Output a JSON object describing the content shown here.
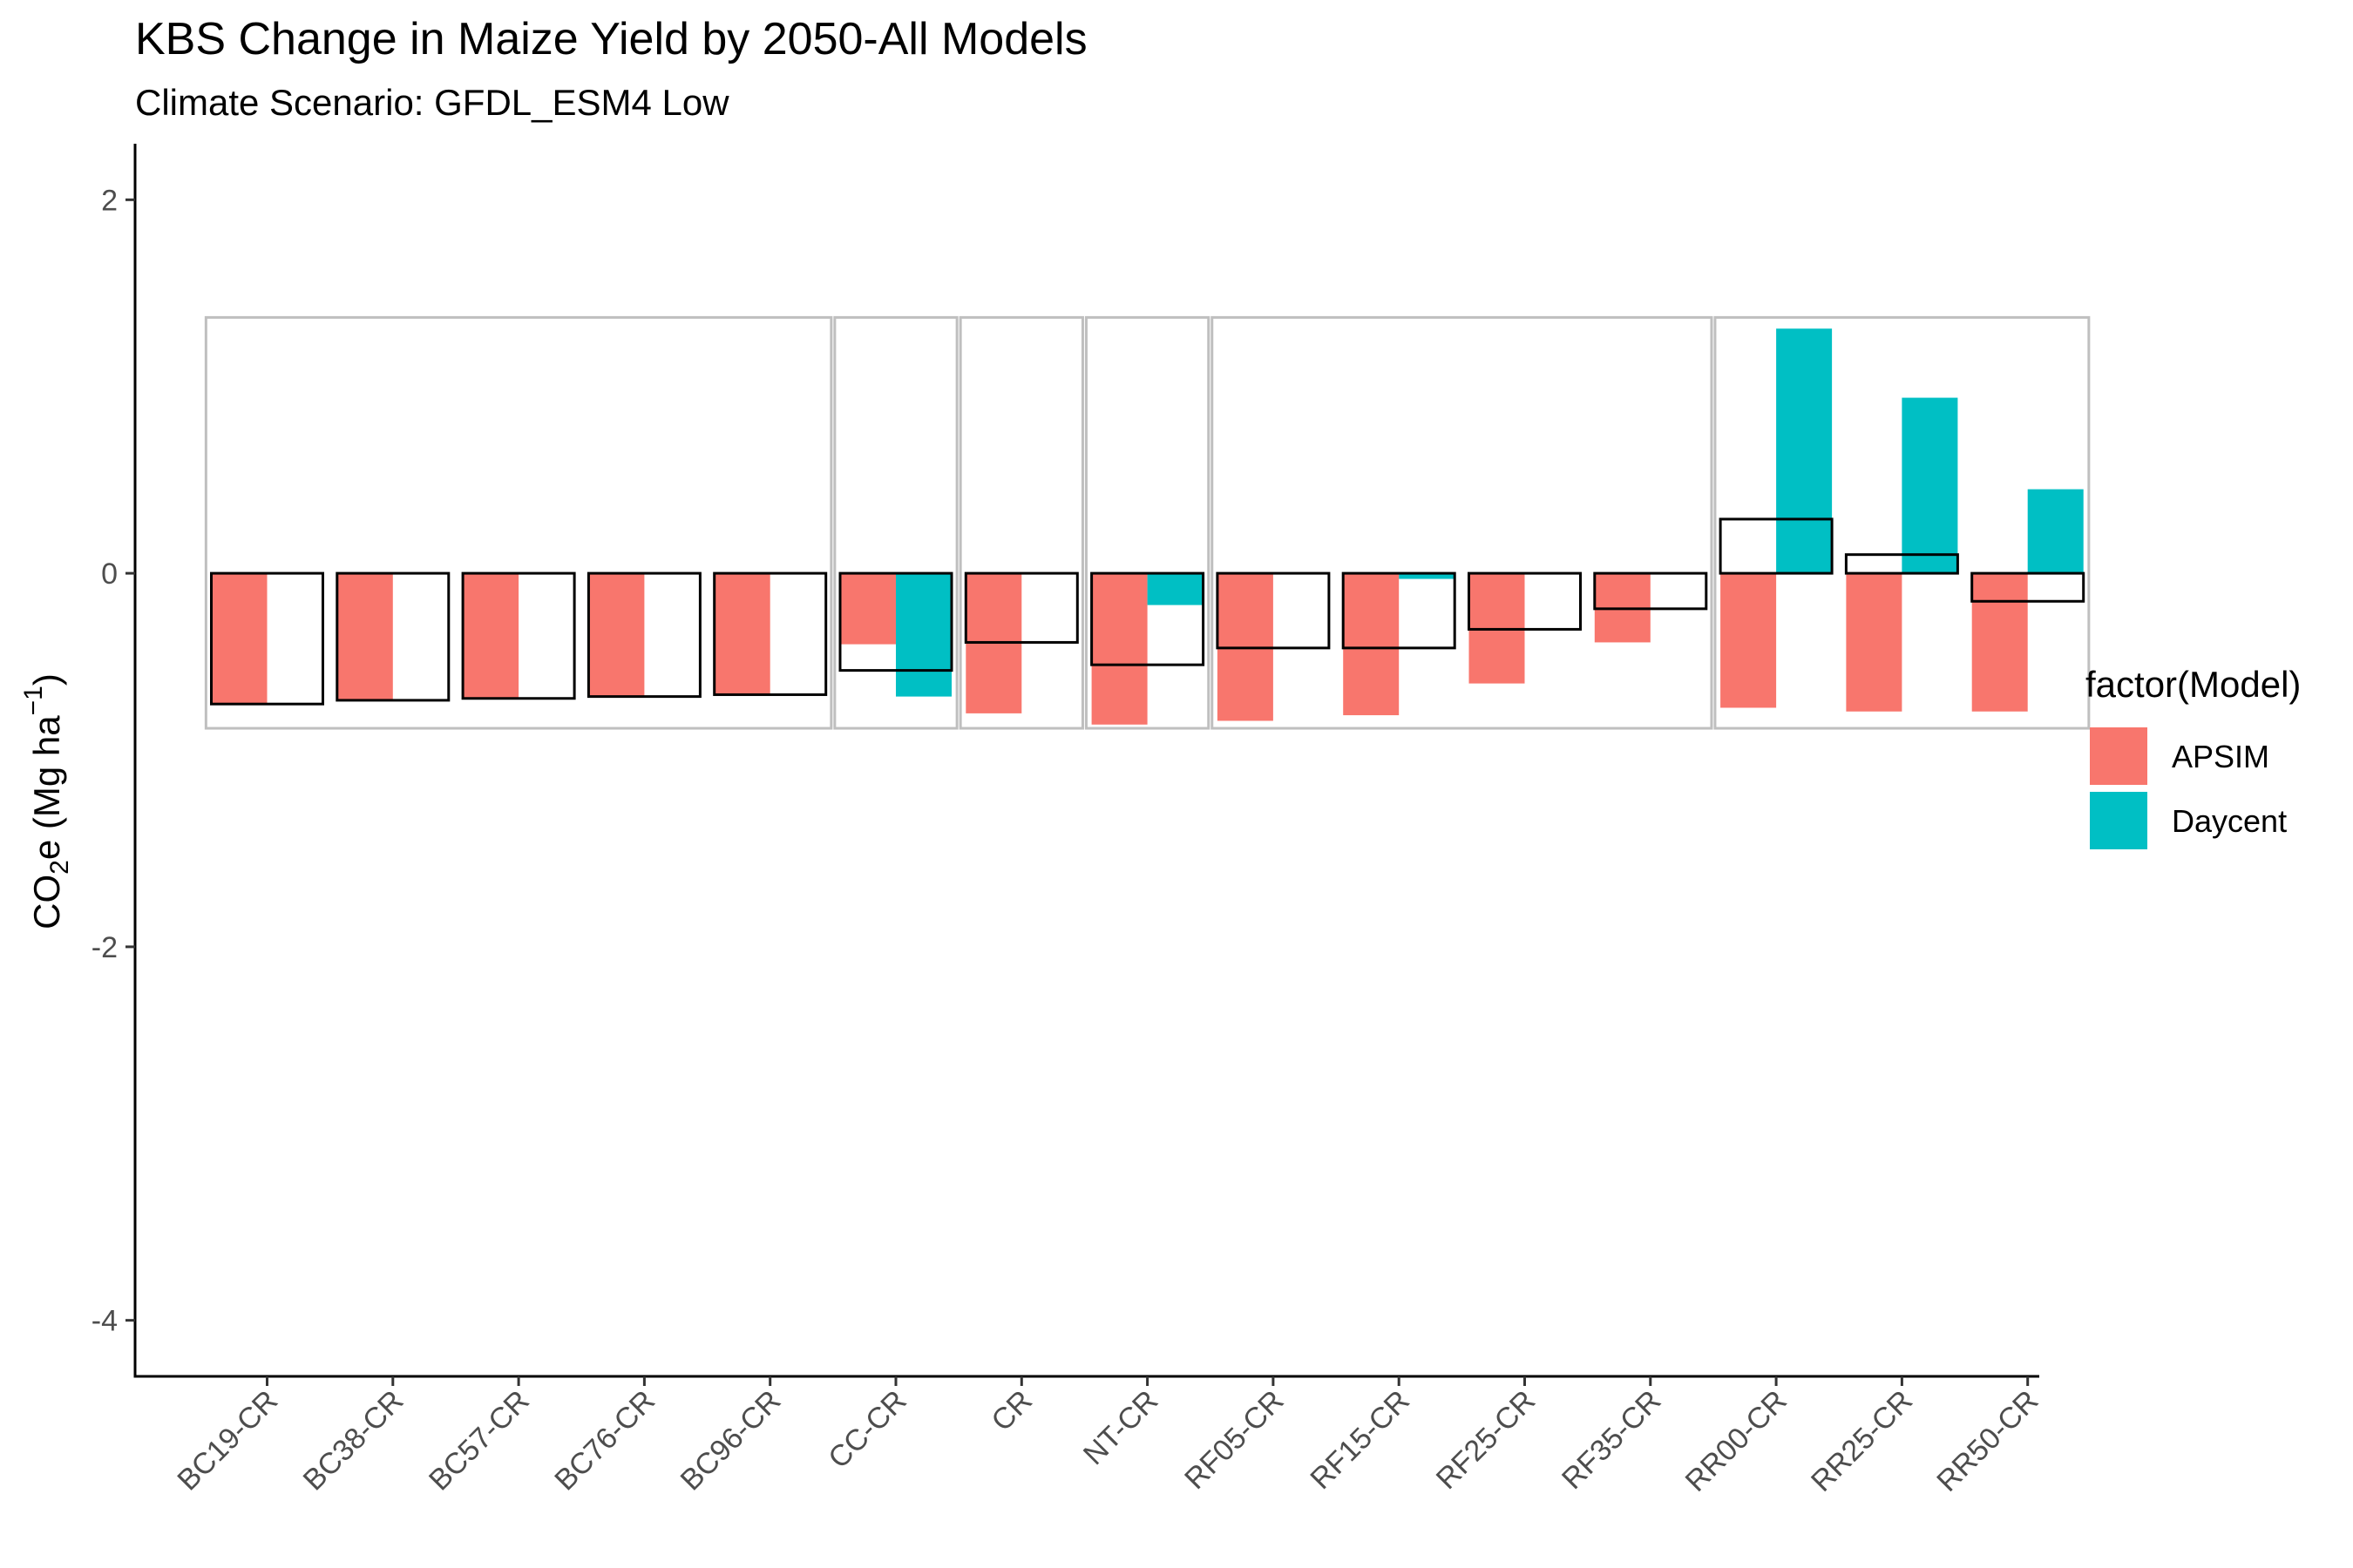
{
  "chart_data": {
    "type": "bar",
    "title": "KBS Change in Maize Yield by 2050-All Models",
    "subtitle": "Climate Scenario: GFDL_ESM4 Low",
    "ylabel_prefix": "CO",
    "ylabel_sub": "2",
    "ylabel_main": "e (Mg ha",
    "ylabel_sup": "−1",
    "ylabel_close": ")",
    "xlabel": "",
    "ylim": [
      -4.3,
      2.3
    ],
    "yticks": [
      2,
      0,
      -2,
      -4
    ],
    "ytick_labels": [
      "2",
      "0",
      "-2",
      "-4"
    ],
    "categories": [
      "BC19-CR",
      "BC38-CR",
      "BC57-CR",
      "BC76-CR",
      "BC96-CR",
      "CC-CR",
      "CR",
      "NT-CR",
      "RF05-CR",
      "RF15-CR",
      "RF25-CR",
      "RF35-CR",
      "RR00-CR",
      "RR25-CR",
      "RR50-CR"
    ],
    "series": [
      {
        "name": "APSIM",
        "color": "#F8766D",
        "values": [
          -0.7,
          -0.68,
          -0.67,
          -0.66,
          -0.65,
          -0.38,
          -0.75,
          -0.81,
          -0.79,
          -0.76,
          -0.59,
          -0.37,
          -0.72,
          -0.74,
          -0.74
        ]
      },
      {
        "name": "Daycent",
        "color": "#00BFC4",
        "values": [
          null,
          null,
          null,
          null,
          null,
          -0.66,
          0,
          -0.17,
          0,
          -0.03,
          0,
          0,
          1.31,
          0.94,
          0.45
        ]
      }
    ],
    "ensemble_mean": [
      -0.7,
      -0.68,
      -0.67,
      -0.66,
      -0.65,
      -0.52,
      -0.37,
      -0.49,
      -0.4,
      -0.4,
      -0.3,
      -0.19,
      0.29,
      0.1,
      -0.15
    ],
    "group_boxes": [
      {
        "start": 0,
        "end": 4,
        "ymin": -0.83,
        "ymax": 1.37
      },
      {
        "start": 5,
        "end": 5,
        "ymin": -0.83,
        "ymax": 1.37
      },
      {
        "start": 6,
        "end": 6,
        "ymin": -0.83,
        "ymax": 1.37
      },
      {
        "start": 7,
        "end": 7,
        "ymin": -0.83,
        "ymax": 1.37
      },
      {
        "start": 8,
        "end": 11,
        "ymin": -0.83,
        "ymax": 1.37
      },
      {
        "start": 12,
        "end": 14,
        "ymin": -0.83,
        "ymax": 1.37
      }
    ],
    "legend": {
      "title": "factor(Model)",
      "placement": "right"
    },
    "grid": false
  }
}
